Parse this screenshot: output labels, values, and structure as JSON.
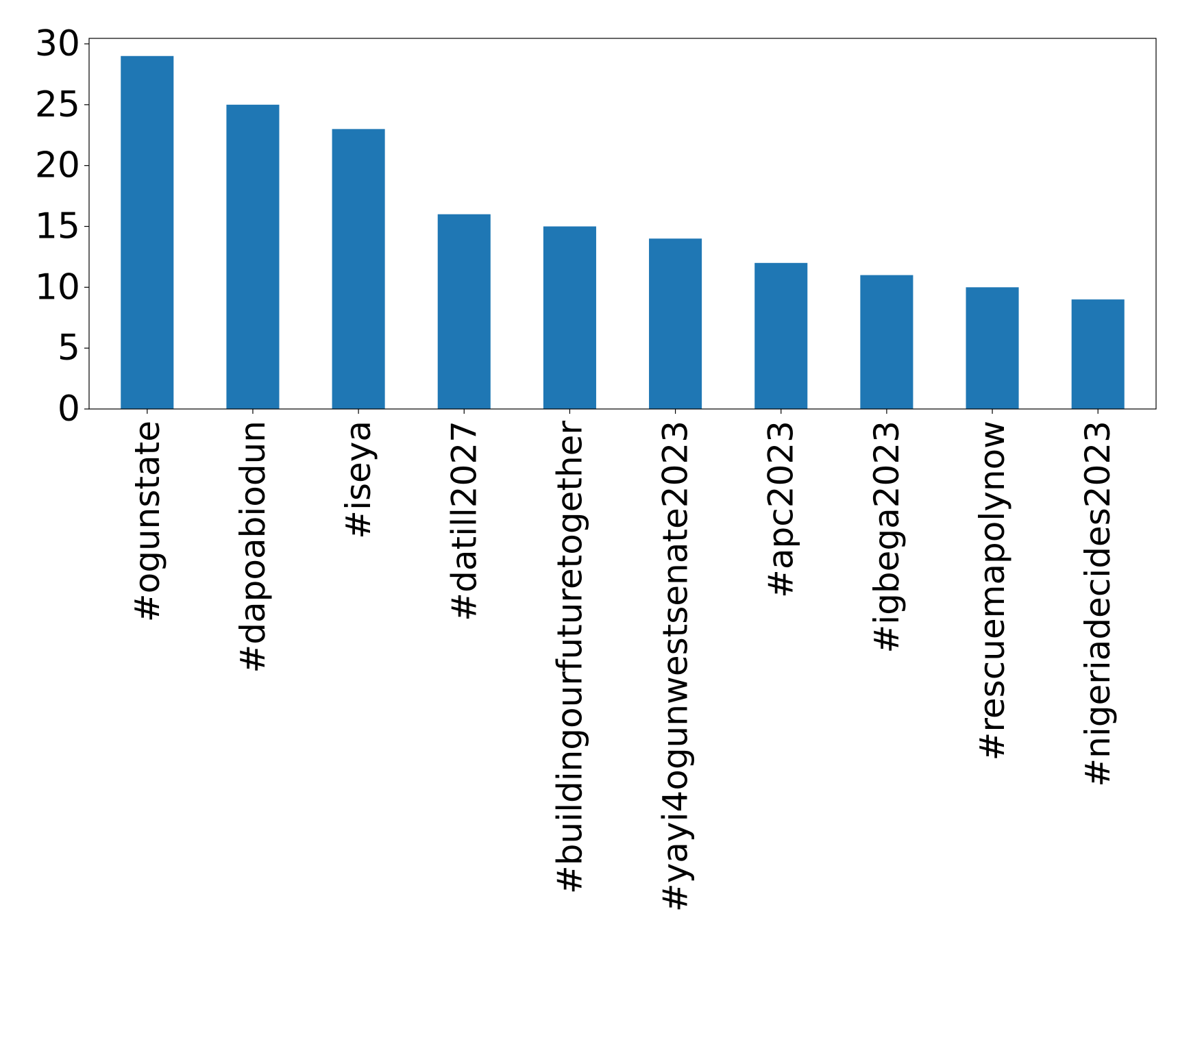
{
  "chart_data": {
    "type": "bar",
    "title": "",
    "xlabel": "",
    "ylabel": "",
    "categories": [
      "#ogunstate",
      "#dapoabiodun",
      "#iseya",
      "#datill2027",
      "#buildingourfuturetogether",
      "#yayi4ogunwestsenate2023",
      "#apc2023",
      "#igbega2023",
      "#rescuemapolynow",
      "#nigeriadecides2023"
    ],
    "values": [
      29,
      25,
      23,
      16,
      15,
      14,
      12,
      11,
      10,
      9
    ],
    "ylim": [
      0,
      30.45
    ],
    "yticks": [
      0,
      5,
      10,
      15,
      20,
      25,
      30
    ],
    "grid": false,
    "legend": "none",
    "colors": {
      "bar": "#1f77b4",
      "axis": "#000000",
      "background": "#ffffff"
    }
  }
}
